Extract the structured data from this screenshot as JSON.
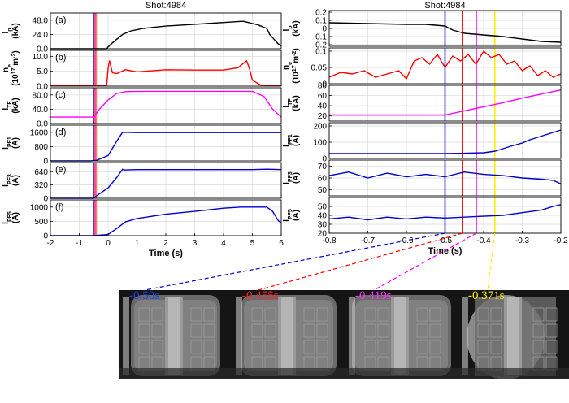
{
  "chart_data": [
    {
      "type": "line",
      "title": "Shot:4984",
      "xlabel": "Time (s)",
      "xlim": [
        -2,
        6
      ],
      "x_ticks": [
        "-2",
        "-1",
        "0",
        "1",
        "2",
        "3",
        "4",
        "5",
        "6"
      ],
      "markers": [
        {
          "x": -0.5,
          "color": "#0000cc"
        },
        {
          "x": -0.455,
          "color": "#ff0000"
        },
        {
          "x": -0.419,
          "color": "#ff00ff"
        },
        {
          "x": -0.371,
          "color": "#ffee00"
        }
      ],
      "panels": [
        {
          "tag": "(a)",
          "ylabel": "Ip (kA)",
          "ylim": [
            0,
            60
          ],
          "yticks": [
            "0.0",
            "24.0",
            "48.0"
          ],
          "tick_values": [
            0,
            24,
            48
          ],
          "color": "#000000",
          "series": [
            {
              "x": [
                -2,
                -0.05,
                0.0,
                0.2,
                0.5,
                0.8,
                1.2,
                2,
                3,
                4,
                4.6,
                4.7,
                5.2,
                5.5,
                5.6,
                5.9,
                6
              ],
              "y": [
                0,
                0,
                3,
                12,
                24,
                30,
                34,
                38,
                41,
                44,
                46,
                46,
                40,
                34,
                24,
                8,
                4
              ]
            }
          ]
        },
        {
          "tag": "(b)",
          "ylabel": "ne (10^17 m^-2)",
          "ylim": [
            0,
            12
          ],
          "yticks": [
            "0.0",
            "5.0",
            "10.0"
          ],
          "tick_values": [
            0,
            5,
            10
          ],
          "color": "#ff0000",
          "series": [
            {
              "x": [
                -2,
                -0.5,
                -0.05,
                0.0,
                0.05,
                0.15,
                0.3,
                0.6,
                1,
                2,
                3,
                4,
                4.5,
                4.8,
                4.9,
                5.0,
                5.3,
                5.5,
                6
              ],
              "y": [
                0.2,
                0.2,
                0.3,
                6,
                8.5,
                4.5,
                4.2,
                5.5,
                4.8,
                5.5,
                5.4,
                5.4,
                6.2,
                8.5,
                5.8,
                2.0,
                0.3,
                0.2,
                0.2
              ]
            }
          ]
        },
        {
          "tag": "(c)",
          "ylabel": "ITF (kA)",
          "ylim": [
            0,
            100
          ],
          "yticks": [
            "0.0",
            "40.0",
            "80.0"
          ],
          "tick_values": [
            0,
            40,
            80
          ],
          "color": "#ff00ff",
          "series": [
            {
              "x": [
                -2,
                -0.5,
                -0.3,
                0,
                0.3,
                0.6,
                1,
                2,
                3,
                4,
                5,
                5.4,
                5.7,
                6
              ],
              "y": [
                18,
                18,
                40,
                66,
                84,
                89,
                90,
                90,
                90,
                90,
                90,
                76,
                40,
                18
              ]
            }
          ]
        },
        {
          "tag": "(d)",
          "ylabel": "IPF1 (A)",
          "ylim": [
            0,
            2000
          ],
          "yticks": [
            "0",
            "800",
            "1600"
          ],
          "tick_values": [
            0,
            800,
            1600
          ],
          "color": "#0000cc",
          "series": [
            {
              "x": [
                -2,
                -0.6,
                -0.4,
                0,
                0.3,
                0.5,
                1,
                2,
                3,
                4,
                5,
                6
              ],
              "y": [
                0,
                0,
                30,
                300,
                1100,
                1600,
                1580,
                1580,
                1580,
                1580,
                1580,
                1580
              ]
            }
          ]
        },
        {
          "tag": "(e)",
          "ylabel": "IPF3 (A)",
          "ylim": [
            0,
            860
          ],
          "yticks": [
            "0",
            "320",
            "640"
          ],
          "tick_values": [
            0,
            320,
            640
          ],
          "color": "#0000cc",
          "series": [
            {
              "x": [
                -2,
                -0.5,
                -0.4,
                0,
                0.3,
                0.5,
                0.55,
                1,
                2,
                3,
                4,
                5,
                5.5,
                6
              ],
              "y": [
                0,
                0,
                60,
                250,
                500,
                700,
                680,
                690,
                690,
                690,
                690,
                690,
                700,
                690
              ]
            }
          ]
        },
        {
          "tag": "(f)",
          "ylabel": "IPF5 (A)",
          "ylim": [
            0,
            1250
          ],
          "yticks": [
            "0",
            "500",
            "1000"
          ],
          "tick_values": [
            0,
            500,
            1000
          ],
          "color": "#0000cc",
          "series": [
            {
              "x": [
                -2,
                -0.5,
                0,
                0.3,
                0.6,
                1,
                2,
                3,
                4,
                4.6,
                5.5,
                5.7,
                5.9,
                6
              ],
              "y": [
                0,
                0,
                40,
                250,
                480,
                600,
                750,
                850,
                960,
                1000,
                1000,
                850,
                520,
                450
              ]
            }
          ]
        }
      ]
    },
    {
      "type": "line",
      "title": "Shot:4984",
      "xlabel": "Time (s)",
      "xlim": [
        -0.8,
        -0.2
      ],
      "x_ticks": [
        "-0.8",
        "-0.7",
        "-0.6",
        "-0.5",
        "-0.4",
        "-0.3",
        "-0.2"
      ],
      "markers": [
        {
          "x": -0.5,
          "color": "#0000cc"
        },
        {
          "x": -0.455,
          "color": "#ff0000"
        },
        {
          "x": -0.419,
          "color": "#ff00ff"
        },
        {
          "x": -0.371,
          "color": "#ffee00"
        }
      ],
      "panels": [
        {
          "ylabel": "Ip (kA)",
          "ylim": [
            -0.22,
            0.22
          ],
          "yticks": [
            "0.2",
            "0.1",
            "0",
            "-0.1",
            "-0.2"
          ],
          "tick_values": [
            0.2,
            0.1,
            0,
            -0.1,
            -0.2
          ],
          "color": "#000000",
          "series": [
            {
              "x": [
                -0.8,
                -0.7,
                -0.6,
                -0.55,
                -0.5,
                -0.48,
                -0.45,
                -0.4,
                -0.35,
                -0.3,
                -0.25,
                -0.2
              ],
              "y": [
                0.07,
                0.06,
                0.05,
                0.05,
                0.03,
                -0.02,
                -0.06,
                -0.08,
                -0.1,
                -0.13,
                -0.16,
                -0.17
              ]
            }
          ]
        },
        {
          "ylabel": "ne (10^17 m^-2)",
          "ylim": [
            0,
            0.11
          ],
          "yticks": [
            "0.1",
            "0.05",
            "0"
          ],
          "tick_values": [
            0.1,
            0.05,
            0
          ],
          "color": "#ff0000",
          "series": [
            {
              "x": [
                -0.8,
                -0.77,
                -0.74,
                -0.71,
                -0.68,
                -0.65,
                -0.62,
                -0.6,
                -0.58,
                -0.56,
                -0.54,
                -0.52,
                -0.5,
                -0.48,
                -0.46,
                -0.44,
                -0.42,
                -0.4,
                -0.38,
                -0.36,
                -0.34,
                -0.32,
                -0.3,
                -0.28,
                -0.26,
                -0.24,
                -0.22,
                -0.2
              ],
              "y": [
                0.02,
                0.035,
                0.03,
                0.04,
                0.02,
                0.03,
                0.04,
                0.015,
                0.07,
                0.08,
                0.06,
                0.09,
                0.05,
                0.085,
                0.07,
                0.09,
                0.06,
                0.1,
                0.08,
                0.09,
                0.06,
                0.07,
                0.04,
                0.055,
                0.025,
                0.04,
                0.02,
                0.03
              ]
            }
          ]
        },
        {
          "ylabel": "ITF (kA)",
          "ylim": [
            10,
            80
          ],
          "yticks": [
            "80",
            "60",
            "40",
            "20"
          ],
          "tick_values": [
            80,
            60,
            40,
            20
          ],
          "color": "#ff00ff",
          "series": [
            {
              "x": [
                -0.8,
                -0.5,
                -0.45,
                -0.4,
                -0.35,
                -0.3,
                -0.25,
                -0.2
              ],
              "y": [
                22,
                22,
                30,
                38,
                46,
                55,
                63,
                71
              ]
            }
          ]
        },
        {
          "ylabel": "IPF1 (A)",
          "ylim": [
            0,
            220
          ],
          "yticks": [
            "200",
            "100",
            "0"
          ],
          "tick_values": [
            200,
            100,
            0
          ],
          "color": "#0000cc",
          "series": [
            {
              "x": [
                -0.8,
                -0.6,
                -0.5,
                -0.45,
                -0.4,
                -0.37,
                -0.35,
                -0.33,
                -0.3,
                -0.28,
                -0.26,
                -0.24,
                -0.22,
                -0.2
              ],
              "y": [
                30,
                30,
                30,
                32,
                35,
                45,
                60,
                75,
                95,
                115,
                130,
                145,
                160,
                175
              ]
            }
          ]
        },
        {
          "ylabel": "IPF3 (A)",
          "ylim": [
            45,
            75
          ],
          "yticks": [
            "70",
            "60",
            "50"
          ],
          "tick_values": [
            70,
            60,
            50
          ],
          "color": "#0000cc",
          "series": [
            {
              "x": [
                -0.8,
                -0.75,
                -0.7,
                -0.65,
                -0.6,
                -0.55,
                -0.5,
                -0.45,
                -0.4,
                -0.35,
                -0.3,
                -0.25,
                -0.22,
                -0.2
              ],
              "y": [
                62,
                65,
                60,
                64,
                61,
                63,
                61,
                65,
                63,
                62,
                60,
                59,
                58,
                55
              ]
            }
          ]
        },
        {
          "ylabel": "IPF5 (A)",
          "ylim": [
            20,
            60
          ],
          "yticks": [
            "50",
            "40",
            "30",
            "20"
          ],
          "tick_values": [
            50,
            40,
            30,
            20
          ],
          "color": "#0000cc",
          "series": [
            {
              "x": [
                -0.8,
                -0.75,
                -0.7,
                -0.65,
                -0.6,
                -0.55,
                -0.5,
                -0.45,
                -0.4,
                -0.35,
                -0.3,
                -0.25,
                -0.22,
                -0.2
              ],
              "y": [
                36,
                38,
                35,
                38,
                36,
                38,
                37,
                38,
                39,
                40,
                43,
                46,
                50,
                52
              ]
            }
          ]
        }
      ]
    }
  ],
  "frames": [
    {
      "time_label": "-0.50s",
      "color": "#2244ee"
    },
    {
      "time_label": "-0.455s",
      "color": "#ff2222"
    },
    {
      "time_label": "-0.419s",
      "color": "#ff33ff"
    },
    {
      "time_label": "-0.371s",
      "color": "#ffee00"
    }
  ]
}
